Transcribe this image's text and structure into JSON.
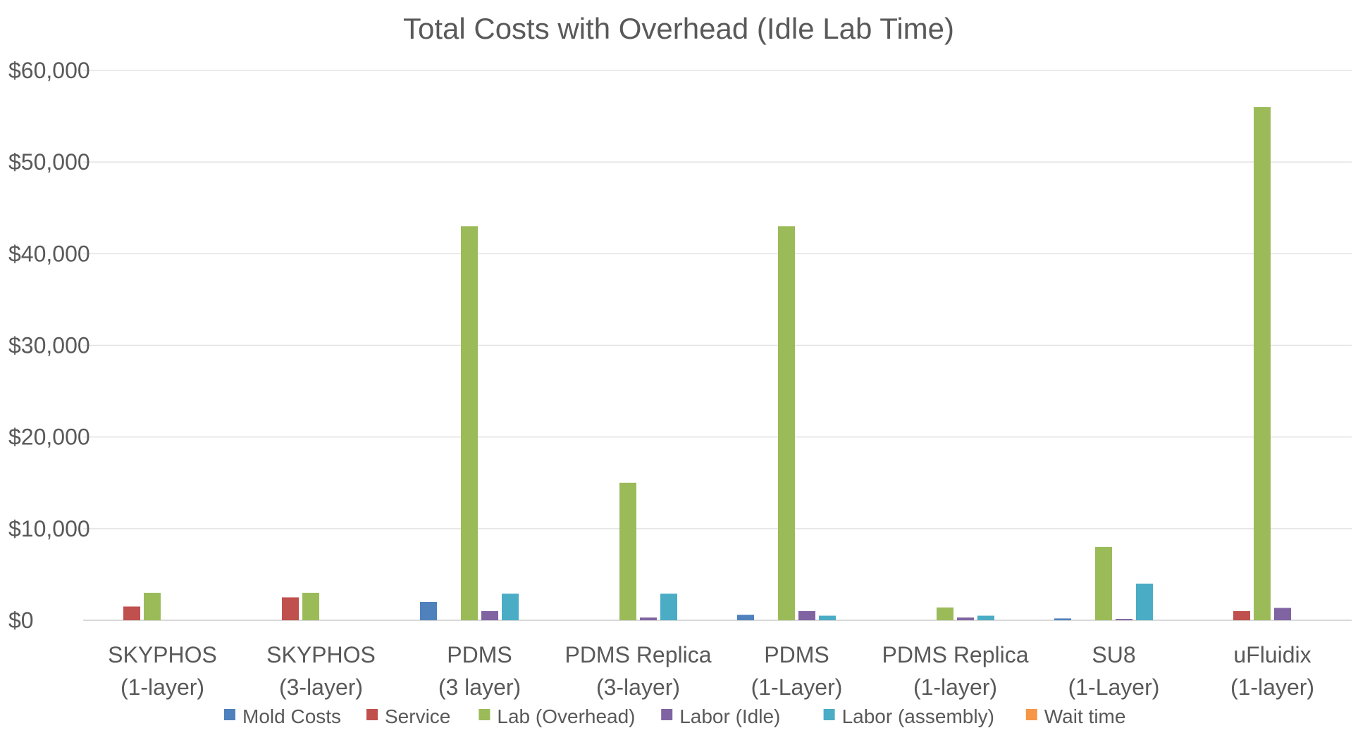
{
  "chart_data": {
    "type": "bar",
    "title": "Total Costs with Overhead (Idle Lab Time)",
    "xlabel": "",
    "ylabel": "",
    "ylim": [
      0,
      60000
    ],
    "y_tick_values": [
      0,
      10000,
      20000,
      30000,
      40000,
      50000,
      60000
    ],
    "y_tick_labels": [
      "$0",
      "$10,000",
      "$20,000",
      "$30,000",
      "$40,000",
      "$50,000",
      "$60,000"
    ],
    "grid": true,
    "legend_position": "bottom",
    "categories": [
      [
        "SKYPHOS",
        "(1-layer)"
      ],
      [
        "SKYPHOS",
        "(3-layer)"
      ],
      [
        "PDMS",
        "(3 layer)"
      ],
      [
        "PDMS Replica",
        "(3-layer)"
      ],
      [
        "PDMS",
        "(1-Layer)"
      ],
      [
        "PDMS Replica",
        "(1-layer)"
      ],
      [
        "SU8",
        "(1-Layer)"
      ],
      [
        "uFluidix",
        "(1-layer)"
      ]
    ],
    "series": [
      {
        "name": "Mold Costs",
        "color": "#4F81BD",
        "values": [
          0,
          0,
          2000,
          0,
          600,
          0,
          200,
          0
        ]
      },
      {
        "name": "Service",
        "color": "#C0504D",
        "values": [
          1500,
          2500,
          0,
          0,
          0,
          0,
          0,
          1000
        ]
      },
      {
        "name": "Lab (Overhead)",
        "color": "#9BBB59",
        "values": [
          3000,
          3000,
          43000,
          15000,
          43000,
          1400,
          8000,
          56000
        ]
      },
      {
        "name": "Labor (Idle)",
        "color": "#8064A2",
        "values": [
          0,
          0,
          1000,
          300,
          1000,
          300,
          150,
          1350
        ]
      },
      {
        "name": "Labor (assembly)",
        "color": "#4BACC6",
        "values": [
          0,
          0,
          2900,
          2900,
          500,
          500,
          4000,
          0
        ]
      },
      {
        "name": "Wait time",
        "color": "#F79646",
        "values": [
          0,
          0,
          0,
          0,
          0,
          0,
          0,
          0
        ]
      }
    ]
  }
}
